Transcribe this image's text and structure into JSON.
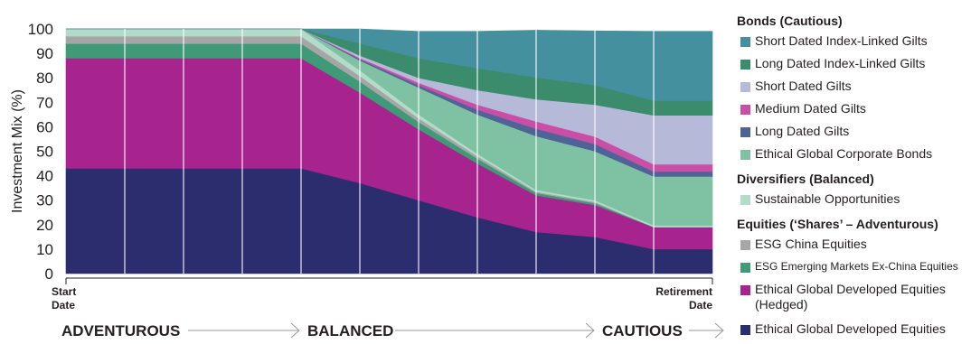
{
  "chart_data": {
    "type": "area",
    "ylabel": "Investment Mix (%)",
    "ylim": [
      0,
      100
    ],
    "yticks": [
      0,
      10,
      20,
      30,
      40,
      50,
      60,
      70,
      80,
      90,
      100
    ],
    "x_start_label": [
      "Start",
      "Date"
    ],
    "x_end_label": [
      "Retirement",
      "Date"
    ],
    "x": [
      0,
      1,
      2,
      3,
      4,
      5,
      6,
      7,
      8,
      9,
      10,
      11
    ],
    "stages": [
      "ADVENTUROUS",
      "BALANCED",
      "CAUTIOUS"
    ],
    "grid": "vertical",
    "legend_position": "right",
    "series": [
      {
        "name": "Ethical Global Developed Equities",
        "color": "#2b2d6e",
        "values": [
          43,
          43,
          43,
          43,
          43,
          37,
          30,
          23,
          17,
          15,
          10,
          10
        ]
      },
      {
        "name": "Ethical Global Developed Equities (Hedged)",
        "color": "#a7248f",
        "values": [
          45,
          45,
          45,
          45,
          45,
          37,
          29,
          22,
          15,
          13,
          9,
          9
        ]
      },
      {
        "name": "ESG Emerging Markets Ex-China Equities",
        "color": "#3f9a77",
        "values": [
          6,
          6,
          6,
          6,
          6,
          4.5,
          3,
          2,
          1,
          0.8,
          0,
          0
        ]
      },
      {
        "name": "ESG China Equities",
        "color": "#a6a6a6",
        "values": [
          3,
          3,
          3,
          3,
          3,
          2.3,
          1.5,
          1,
          0.5,
          0.5,
          0,
          0
        ]
      },
      {
        "name": "Sustainable Opportunities",
        "color": "#b2dcc9",
        "values": [
          3,
          3,
          3,
          3,
          3,
          2.3,
          1.5,
          1,
          0.7,
          0.7,
          0.7,
          0.7
        ]
      },
      {
        "name": "Ethical Global Corporate Bonds",
        "color": "#7ec2a3",
        "values": [
          0,
          0,
          0,
          0,
          0,
          4,
          11,
          16,
          22,
          20,
          20,
          20
        ]
      },
      {
        "name": "Long Dated Gilts",
        "color": "#4f6496",
        "values": [
          0,
          0,
          0,
          0,
          0,
          0.5,
          1,
          2,
          3,
          3,
          2,
          2
        ]
      },
      {
        "name": "Medium Dated Gilts",
        "color": "#c94fa6",
        "values": [
          0,
          0,
          0,
          0,
          0,
          0.5,
          1,
          2,
          3,
          3,
          3,
          3
        ]
      },
      {
        "name": "Short Dated Gilts",
        "color": "#b7b9d9",
        "values": [
          0,
          0,
          0,
          0,
          0,
          1,
          2,
          6,
          9,
          13,
          20,
          20
        ]
      },
      {
        "name": "Long Dated Index-Linked Gilts",
        "color": "#3a8c6c",
        "values": [
          0,
          0,
          0,
          0,
          0,
          5,
          8,
          9,
          9,
          8,
          6,
          6
        ]
      },
      {
        "name": "Short Dated Index-Linked Gilts",
        "color": "#45909e",
        "values": [
          0,
          0,
          0,
          0,
          0,
          5.9,
          11,
          15,
          19.3,
          22.2,
          28.3,
          28.3
        ]
      }
    ]
  },
  "legend": [
    {
      "kind": "header",
      "label": "Bonds (Cautious)"
    },
    {
      "kind": "item",
      "series": 10,
      "label": "Short Dated Index-Linked Gilts"
    },
    {
      "kind": "item",
      "series": 9,
      "label": "Long Dated Index-Linked Gilts"
    },
    {
      "kind": "item",
      "series": 8,
      "label": "Short Dated Gilts"
    },
    {
      "kind": "item",
      "series": 7,
      "label": "Medium Dated Gilts"
    },
    {
      "kind": "item",
      "series": 6,
      "label": "Long Dated Gilts"
    },
    {
      "kind": "item",
      "series": 5,
      "label": "Ethical Global Corporate Bonds"
    },
    {
      "kind": "header",
      "label": "Diversifiers (Balanced)"
    },
    {
      "kind": "item",
      "series": 4,
      "label": "Sustainable Opportunities"
    },
    {
      "kind": "header",
      "label": "Equities (‘Shares’ – Adventurous)"
    },
    {
      "kind": "item",
      "series": 3,
      "label": "ESG China Equities"
    },
    {
      "kind": "item",
      "series": 2,
      "label": "ESG Emerging Markets Ex-China Equities",
      "small": true
    },
    {
      "kind": "item",
      "series": 1,
      "label": "Ethical Global Developed Equities (Hedged)",
      "tall": true
    },
    {
      "kind": "item",
      "series": 0,
      "label": "Ethical Global Developed Equities"
    }
  ]
}
